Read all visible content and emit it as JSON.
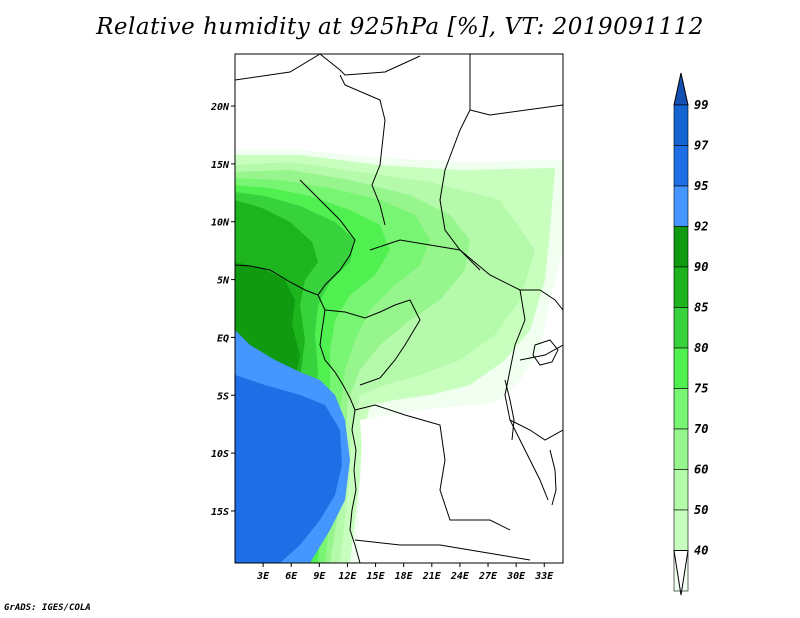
{
  "title": "Relative humidity at 925hPa [%], VT: 2019091112",
  "footer": "GrADS: IGES/COLA",
  "map": {
    "lon_range": [
      0,
      35
    ],
    "lat_range": [
      -19.5,
      24.5
    ],
    "lon_ticks": [
      "3E",
      "6E",
      "9E",
      "12E",
      "15E",
      "18E",
      "21E",
      "24E",
      "27E",
      "30E",
      "33E"
    ],
    "lon_tick_values": [
      3,
      6,
      9,
      12,
      15,
      18,
      21,
      24,
      27,
      30,
      33
    ],
    "lat_ticks": [
      "20N",
      "15N",
      "10N",
      "5N",
      "EQ",
      "5S",
      "10S",
      "15S"
    ],
    "lat_tick_values": [
      20,
      15,
      10,
      5,
      0,
      -5,
      -10,
      -15
    ]
  },
  "colorbar": {
    "levels": [
      "99",
      "97",
      "95",
      "92",
      "90",
      "85",
      "80",
      "75",
      "70",
      "60",
      "50",
      "40"
    ],
    "colors": [
      "#1464d2",
      "#1e6ee6",
      "#4696ff",
      "#0f9a0f",
      "#1eb41e",
      "#37d23c",
      "#50f050",
      "#78f573",
      "#96f58c",
      "#b4faaa",
      "#c8ffbe",
      "#f0fff0"
    ],
    "top_color": "#1450b4"
  },
  "colors": {
    "land_boundary": "#000000",
    "background": "#ffffff"
  }
}
